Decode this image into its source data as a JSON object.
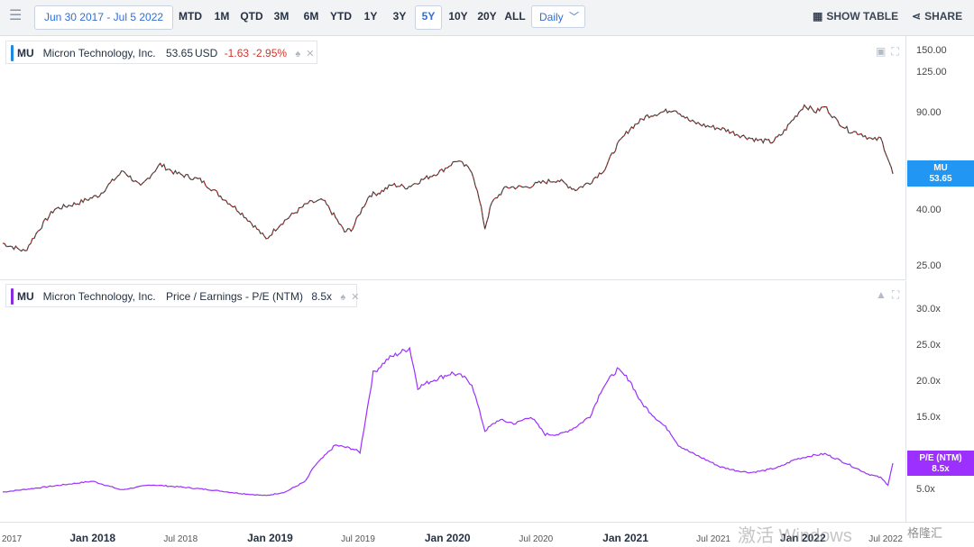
{
  "toolbar": {
    "date_range": "Jun 30 2017 - Jul 5 2022",
    "ranges": [
      "MTD",
      "1M",
      "QTD",
      "3M",
      "6M",
      "YTD",
      "1Y",
      "3Y",
      "5Y",
      "10Y",
      "20Y",
      "ALL"
    ],
    "active_range": "5Y",
    "frequency": "Daily",
    "show_table": "SHOW TABLE",
    "share": "SHARE"
  },
  "price_panel": {
    "ticker": "MU",
    "company": "Micron Technology, Inc.",
    "price": "53.65",
    "currency": "USD",
    "change": "-1.63",
    "change_pct": "-2.95%",
    "badge_ticker": "MU",
    "badge_value": "53.65",
    "accent_color": "#1e88e5",
    "badge_color": "#2196f3"
  },
  "pe_panel": {
    "ticker": "MU",
    "company": "Micron Technology, Inc.",
    "metric": "Price / Earnings - P/E (NTM)",
    "value": "8.5x",
    "badge_label": "P/E (NTM)",
    "badge_value": "8.5x",
    "accent_color": "#8a2be2",
    "badge_color": "#9b30ff"
  },
  "watermark": {
    "text": "激活 Windows",
    "brand": "格隆汇"
  },
  "chart_data": [
    {
      "type": "line",
      "series": [
        {
          "name": "MU",
          "x": [
            "2017-06-30",
            "2017-08-15",
            "2017-10-15",
            "2017-12-01",
            "2018-01-15",
            "2018-03-05",
            "2018-04-10",
            "2018-05-20",
            "2018-06-20",
            "2018-08-10",
            "2018-09-25",
            "2018-11-01",
            "2018-12-24",
            "2019-01-20",
            "2019-03-20",
            "2019-04-20",
            "2019-06-03",
            "2019-06-20",
            "2019-07-25",
            "2019-08-15",
            "2019-09-10",
            "2019-10-10",
            "2019-11-30",
            "2019-12-20",
            "2020-01-20",
            "2020-02-20",
            "2020-03-18",
            "2020-04-01",
            "2020-05-01",
            "2020-06-10",
            "2020-07-15",
            "2020-08-15",
            "2020-09-20",
            "2020-10-20",
            "2020-11-20",
            "2020-12-15",
            "2021-01-10",
            "2021-02-15",
            "2021-03-10",
            "2021-04-12",
            "2021-05-15",
            "2021-06-15",
            "2021-07-20",
            "2021-08-25",
            "2021-09-30",
            "2021-10-30",
            "2021-11-20",
            "2021-12-20",
            "2022-01-04",
            "2022-01-28",
            "2022-02-15",
            "2022-03-10",
            "2022-04-05",
            "2022-05-01",
            "2022-05-25",
            "2022-06-10",
            "2022-06-25",
            "2022-07-05"
          ],
          "values": [
            30,
            28,
            40,
            42,
            45,
            55,
            48,
            58,
            54,
            51,
            44,
            39,
            31,
            35,
            42,
            43,
            33,
            34,
            45,
            46,
            49,
            48,
            53,
            55,
            60,
            55,
            34,
            42,
            48,
            48,
            50,
            51,
            47,
            50,
            56,
            68,
            78,
            87,
            89,
            92,
            83,
            80,
            78,
            74,
            71,
            70,
            75,
            88,
            95,
            90,
            94,
            84,
            77,
            75,
            71,
            72,
            61,
            53.65
          ],
          "scale": "log"
        }
      ],
      "yticks": [
        "150.00",
        "125.00",
        "90.00",
        "40.00",
        "25.00"
      ]
    },
    {
      "type": "line",
      "series": [
        {
          "name": "P/E (NTM)",
          "x": [
            "2017-06-30",
            "2017-09-01",
            "2017-11-01",
            "2018-01-01",
            "2018-03-01",
            "2018-05-01",
            "2018-07-01",
            "2018-09-01",
            "2018-11-01",
            "2018-12-24",
            "2019-02-01",
            "2019-03-15",
            "2019-04-01",
            "2019-05-15",
            "2019-06-20",
            "2019-07-05",
            "2019-08-01",
            "2019-09-01",
            "2019-10-15",
            "2019-11-01",
            "2019-12-01",
            "2020-01-10",
            "2020-02-01",
            "2020-02-20",
            "2020-03-18",
            "2020-04-15",
            "2020-05-20",
            "2020-06-20",
            "2020-07-20",
            "2020-08-20",
            "2020-09-20",
            "2020-10-20",
            "2020-11-15",
            "2020-12-15",
            "2021-01-10",
            "2021-02-01",
            "2021-03-01",
            "2021-04-01",
            "2021-04-20",
            "2021-05-15",
            "2021-06-15",
            "2021-07-15",
            "2021-08-15",
            "2021-09-15",
            "2021-10-15",
            "2021-11-15",
            "2021-12-15",
            "2022-01-15",
            "2022-02-15",
            "2022-03-15",
            "2022-04-15",
            "2022-05-15",
            "2022-06-10",
            "2022-06-25",
            "2022-07-05"
          ],
          "values": [
            4.5,
            5.0,
            5.5,
            6.0,
            4.8,
            5.5,
            5.2,
            4.8,
            4.3,
            4.0,
            4.5,
            6.0,
            8.0,
            11.0,
            10.5,
            10.0,
            21.0,
            23.0,
            24.5,
            19.0,
            20.0,
            21.0,
            20.5,
            19.5,
            13.0,
            14.5,
            14.0,
            15.0,
            12.5,
            12.5,
            13.5,
            15.0,
            19.0,
            21.5,
            20.0,
            17.0,
            15.0,
            13.0,
            11.0,
            10.0,
            9.0,
            8.0,
            7.5,
            7.2,
            7.5,
            8.0,
            9.0,
            9.5,
            9.8,
            9.0,
            8.0,
            7.0,
            6.5,
            5.5,
            8.5
          ],
          "unit": "x"
        }
      ],
      "yticks": [
        "30.0x",
        "25.0x",
        "20.0x",
        "15.0x",
        "5.0x"
      ]
    }
  ],
  "x_axis_labels": [
    "2017",
    "Jan 2018",
    "Jul 2018",
    "Jan 2019",
    "Jul 2019",
    "Jan 2020",
    "Jul 2020",
    "Jan 2021",
    "Jul 2021",
    "Jan 2022",
    "Jul 2022"
  ]
}
